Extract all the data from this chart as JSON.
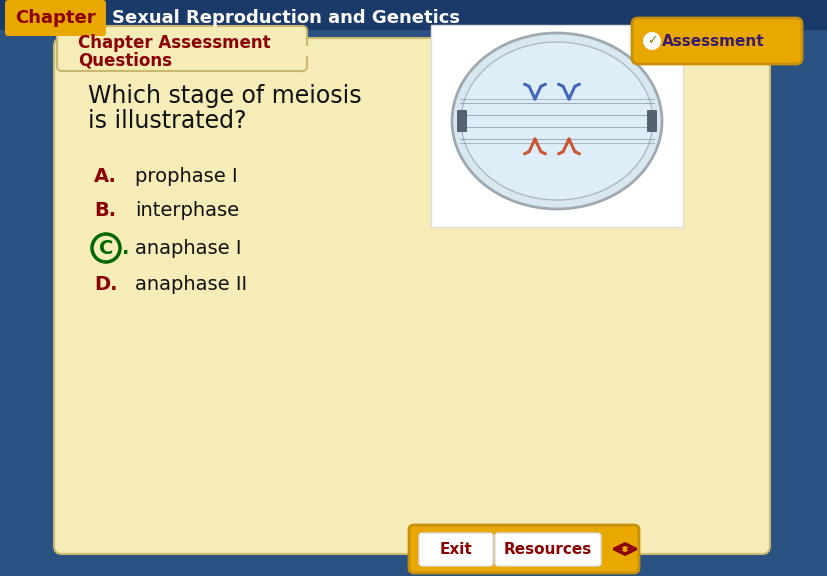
{
  "title_chapter": "Chapter",
  "title_main": "Sexual Reproduction and Genetics",
  "section_title_line1": "Chapter Assessment",
  "section_title_line2": "Questions",
  "question": "Which stage of meiosis\nis illustrated?",
  "options": [
    {
      "letter": "A.",
      "text": "prophase I",
      "circled": false
    },
    {
      "letter": "B.",
      "text": "interphase",
      "circled": false
    },
    {
      "letter": "C.",
      "text": "anaphase I",
      "circled": true
    },
    {
      "letter": "D.",
      "text": "anaphase II",
      "circled": false
    }
  ],
  "assessment_label": "Assessment",
  "exit_label": "Exit",
  "resources_label": "Resources",
  "bg_outer": "#2a5282",
  "bg_card": "#f5ecb8",
  "bg_header": "#1a3a6a",
  "header_text_color": "#ffffff",
  "chapter_box_color": "#e8a800",
  "chapter_text_color": "#8b0000",
  "section_title_color": "#8b0000",
  "question_text_color": "#111111",
  "option_letter_color": "#8b0000",
  "option_text_color": "#111111",
  "circle_color": "#006600",
  "assessment_box_color": "#e8a800",
  "assessment_check_color": "#ffffff",
  "assessment_text_color": "#3a1a6a",
  "bottom_bar_color": "#e8a800",
  "exit_text_color": "#8b0000",
  "resources_text_color": "#8b0000",
  "arrow_color": "#8b0000",
  "card_edge_color": "#c8b870"
}
